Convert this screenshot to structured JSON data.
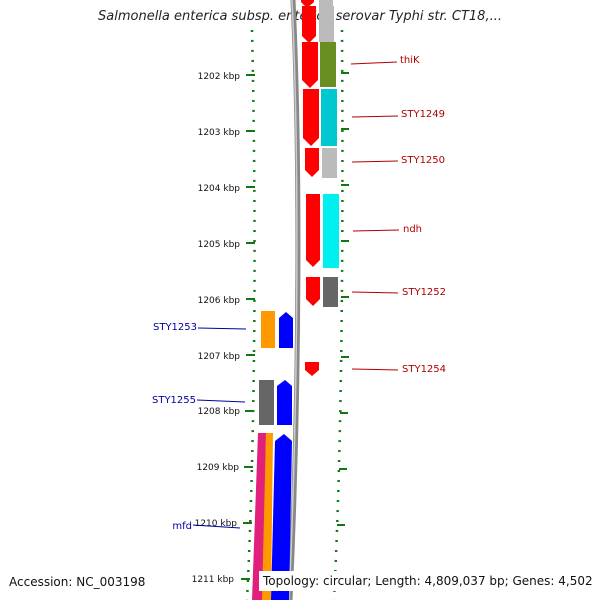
{
  "title": "Salmonella enterica subsp. enterica serovar Typhi str. CT18,...",
  "accession_text": "Accession: NC_003198",
  "summary_text": "Topology: circular; Length: 4,809,037 bp; Genes: 4,502",
  "kbp_labels": [
    "1202 kbp",
    "1203 kbp",
    "1204 kbp",
    "1205 kbp",
    "1206 kbp",
    "1207 kbp",
    "1208 kbp",
    "1209 kbp",
    "1210 kbp",
    "1211 kbp"
  ],
  "forward_gene_labels": [
    "thiK",
    "STY1249",
    "STY1250",
    "ndh",
    "STY1252",
    "STY1254"
  ],
  "reverse_gene_labels": [
    "STY1253",
    "STY1255",
    "mfd"
  ],
  "colors": {
    "cds_forward": "#ff0000",
    "cds_reverse": "#0000ff",
    "cog_green": "#6b8e23",
    "cog_cyan": "#00c8d0",
    "cog_light_cyan": "#00f0f0",
    "cog_grey": "#bbbbbb",
    "cog_dark_grey": "#666666",
    "cog_orange": "#ff9900",
    "cog_pink": "#e0207a",
    "tick_green": "#117711",
    "backbone_grey": "#888888"
  }
}
